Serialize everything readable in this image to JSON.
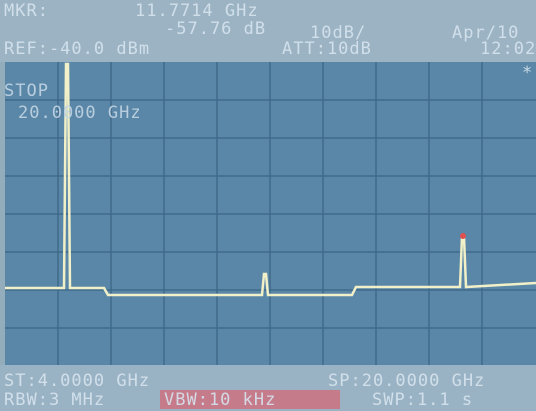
{
  "header": {
    "marker_label": "MKR:",
    "marker_freq": "11.7714 GHz",
    "marker_level": "-57.76 dB",
    "scale": "10dB/",
    "date": "Apr/10",
    "ref": "REF:-40.0 dBm",
    "att": "ATT:10dB",
    "time": "12:02",
    "flag": "*"
  },
  "overlay": {
    "label": "STOP",
    "value": "20.0000 GHz"
  },
  "footer": {
    "start": "ST:4.0000 GHz",
    "stop": "SP:20.0000 GHz",
    "rbw": "RBW:3 MHz",
    "vbw": "VBW:10 kHz",
    "swp": "SWP:1.1 s"
  }
}
